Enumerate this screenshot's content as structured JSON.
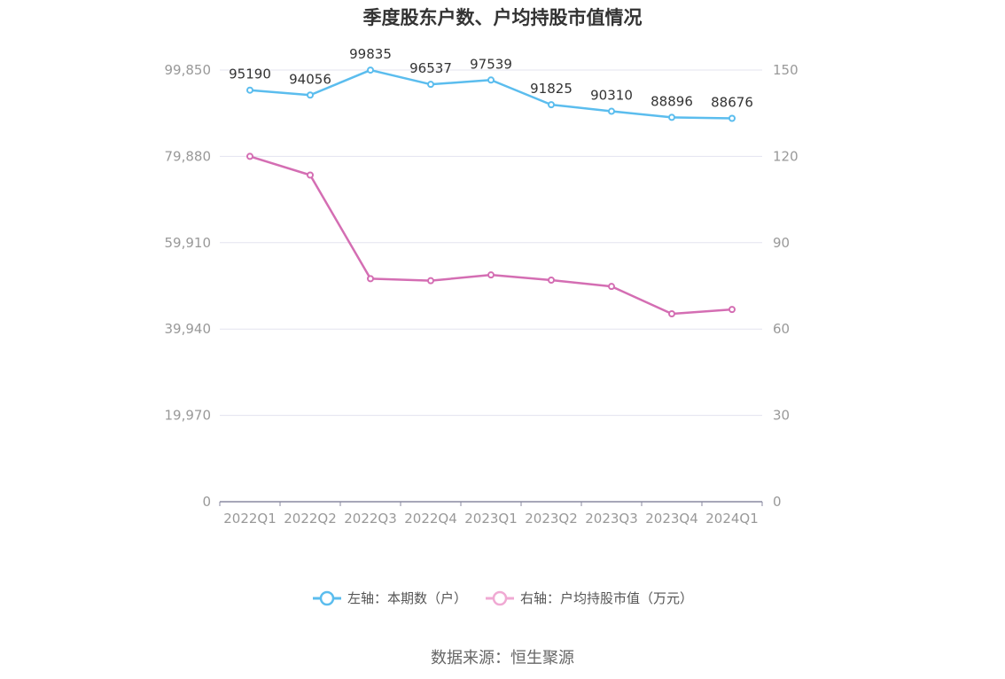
{
  "chart_data": {
    "type": "line",
    "title": "季度股东户数、户均持股市值情况",
    "categories": [
      "2022Q1",
      "2022Q2",
      "2022Q3",
      "2022Q4",
      "2023Q1",
      "2023Q2",
      "2023Q3",
      "2023Q4",
      "2024Q1"
    ],
    "series": [
      {
        "name": "左轴：本期数（户）",
        "axis": "left",
        "color": "#5bbdee",
        "values": [
          95190,
          94056,
          99835,
          96537,
          97539,
          91825,
          90310,
          88896,
          88676
        ],
        "show_labels": true
      },
      {
        "name": "右轴：户均持股市值（万元）",
        "axis": "right",
        "color": "#d46eb3",
        "legend_color": "#f0a9d3",
        "values": [
          120,
          113.5,
          77.5,
          76.8,
          78.8,
          77.0,
          74.8,
          65.3,
          66.8
        ],
        "show_labels": false
      }
    ],
    "left_axis": {
      "ylim": [
        0,
        99850
      ],
      "ticks": [
        0,
        19970,
        39940,
        59910,
        79880,
        99850
      ],
      "tick_labels": [
        "0",
        "19,970",
        "39,940",
        "59,910",
        "79,880",
        "99,850"
      ]
    },
    "right_axis": {
      "ylim": [
        0,
        150
      ],
      "ticks": [
        0,
        30,
        60,
        90,
        120,
        150
      ],
      "tick_labels": [
        "0",
        "30",
        "60",
        "90",
        "120",
        "150"
      ]
    },
    "grid": true,
    "legend_position": "bottom"
  },
  "source": "数据来源：恒生聚源"
}
